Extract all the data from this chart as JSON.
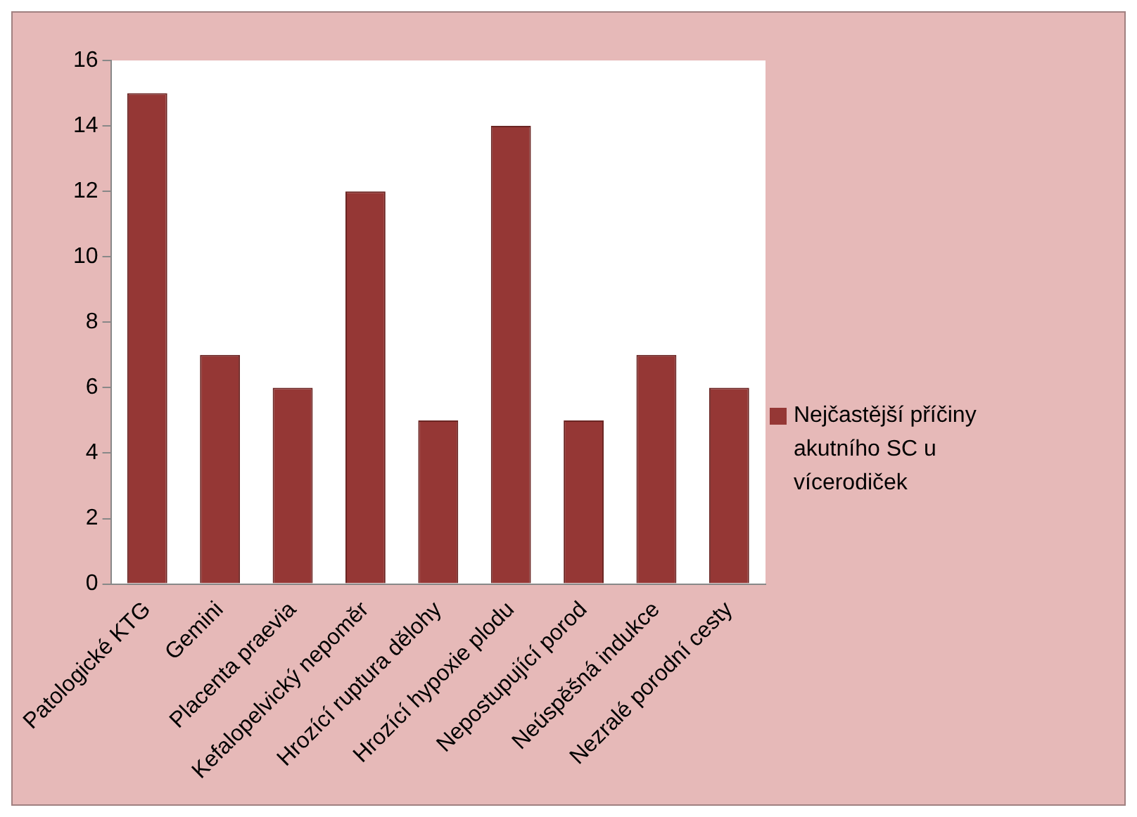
{
  "chart_data": {
    "type": "bar",
    "categories": [
      "Patologické KTG",
      "Gemini",
      "Placenta praevia",
      "Kefalopelvický nepoměr",
      "Hrozící ruptura dělohy",
      "Hrozící hypoxie plodu",
      "Nepostupující porod",
      "Neúspěšná indukce",
      "Nezralé porodní cesty"
    ],
    "series": [
      {
        "name": "Nejčastější příčiny akutního SC u vícerodiček",
        "color": "#953735",
        "values": [
          15,
          7,
          6,
          12,
          5,
          14,
          5,
          7,
          6
        ]
      }
    ],
    "ylim": [
      0,
      16
    ],
    "yticks": [
      0,
      2,
      4,
      6,
      8,
      10,
      12,
      14,
      16
    ],
    "grid": false,
    "legend": "right"
  }
}
